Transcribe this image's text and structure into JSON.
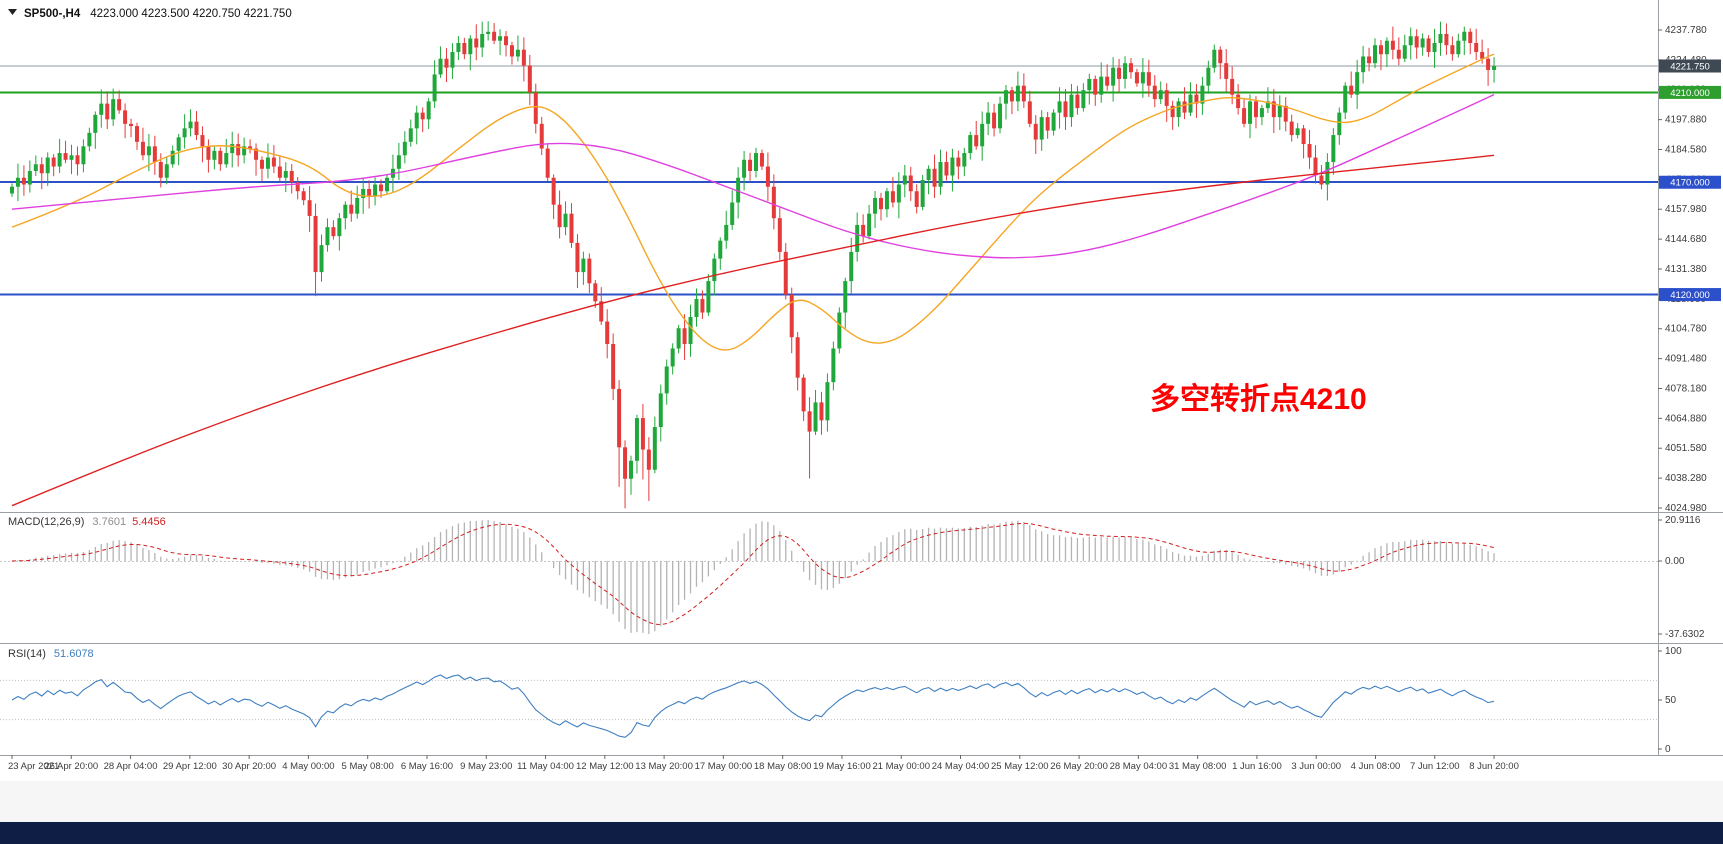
{
  "header": {
    "symbol": "SP500-,H4",
    "ohlc": "4223.000 4223.500 4220.750 4221.750"
  },
  "annotation": {
    "text": "多空转折点4210",
    "color": "#ff0000"
  },
  "colors": {
    "up_candle": "#1fa73a",
    "down_candle": "#e43a3a",
    "bottom_bar": "#0e1e44",
    "bottom_strip": "#f6f6f6",
    "separator": "#9aa0a6"
  },
  "chart_data": {
    "type": "candlestick",
    "title": "SP500-,H4",
    "symbol": "SP500-",
    "timeframe": "H4",
    "current_bar": {
      "open": 4223.0,
      "high": 4223.5,
      "low": 4220.75,
      "close": 4221.75
    },
    "ylim": [
      4024.98,
      4243.0
    ],
    "grid": false,
    "x_labels": [
      "23 Apr 2021",
      "26 Apr 20:00",
      "28 Apr 04:00",
      "29 Apr 12:00",
      "30 Apr 20:00",
      "4 May 00:00",
      "5 May 08:00",
      "6 May 16:00",
      "9 May 23:00",
      "11 May 04:00",
      "12 May 12:00",
      "13 May 20:00",
      "17 May 00:00",
      "18 May 08:00",
      "19 May 16:00",
      "21 May 00:00",
      "24 May 04:00",
      "25 May 12:00",
      "26 May 20:00",
      "28 May 04:00",
      "31 May 08:00",
      "1 Jun 16:00",
      "3 Jun 00:00",
      "4 Jun 08:00",
      "7 Jun 12:00",
      "8 Jun 20:00"
    ],
    "price_axis_ticks": [
      {
        "label": "4237.780",
        "price": 4237.78
      },
      {
        "label": "4224.480",
        "price": 4224.48
      },
      {
        "label": "4211.180",
        "price": 4211.18
      },
      {
        "label": "4197.880",
        "price": 4197.88
      },
      {
        "label": "4184.580",
        "price": 4184.58
      },
      {
        "label": "4171.280",
        "price": 4171.28
      },
      {
        "label": "4157.980",
        "price": 4157.98
      },
      {
        "label": "4144.680",
        "price": 4144.68
      },
      {
        "label": "4131.380",
        "price": 4131.38
      },
      {
        "label": "4118.080",
        "price": 4118.08
      },
      {
        "label": "4104.780",
        "price": 4104.78
      },
      {
        "label": "4091.480",
        "price": 4091.48
      },
      {
        "label": "4078.180",
        "price": 4078.18
      },
      {
        "label": "4064.880",
        "price": 4064.88
      },
      {
        "label": "4051.580",
        "price": 4051.58
      },
      {
        "label": "4038.280",
        "price": 4038.28
      },
      {
        "label": "4024.980",
        "price": 4024.98
      }
    ],
    "levels": [
      {
        "price": 4221.75,
        "label": "4221.750",
        "line_color": "#8f98a0",
        "tag_color": "#3e4954",
        "width": 1
      },
      {
        "price": 4210.0,
        "label": "4210.000",
        "line_color": "#1fa01f",
        "tag_color": "#2e9e2e",
        "width": 2
      },
      {
        "price": 4170.0,
        "label": "4170.000",
        "line_color": "#2b50c8",
        "tag_color": "#2c50cc",
        "width": 2
      },
      {
        "price": 4120.0,
        "label": "4120.000",
        "line_color": "#2b50c8",
        "tag_color": "#2c50cc",
        "width": 2
      }
    ],
    "open_first": 4165,
    "closes": [
      4168,
      4172,
      4169,
      4175,
      4178,
      4174,
      4181,
      4177,
      4183,
      4180,
      4182,
      4178,
      4186,
      4192,
      4200,
      4205,
      4198,
      4207,
      4202,
      4196,
      4195,
      4188,
      4182,
      4186,
      4179,
      4172,
      4178,
      4184,
      4190,
      4194,
      4197,
      4191,
      4186,
      4180,
      4184,
      4178,
      4183,
      4187,
      4182,
      4186,
      4185,
      4180,
      4176,
      4181,
      4177,
      4172,
      4175,
      4170,
      4166,
      4162,
      4155,
      4130,
      4142,
      4150,
      4146,
      4154,
      4160,
      4156,
      4163,
      4167,
      4164,
      4169,
      4166,
      4172,
      4176,
      4182,
      4188,
      4194,
      4201,
      4198,
      4206,
      4218,
      4225,
      4221,
      4228,
      4232,
      4227,
      4234,
      4230,
      4236,
      4237,
      4233,
      4235,
      4231,
      4226,
      4229,
      4222,
      4210,
      4196,
      4185,
      4172,
      4160,
      4150,
      4156,
      4143,
      4130,
      4136,
      4125,
      4117,
      4108,
      4098,
      4078,
      4052,
      4038,
      4046,
      4065,
      4051,
      4042,
      4061,
      4076,
      4088,
      4096,
      4105,
      4098,
      4110,
      4118,
      4112,
      4126,
      4136,
      4144,
      4151,
      4161,
      4172,
      4180,
      4175,
      4183,
      4177,
      4168,
      4154,
      4139,
      4120,
      4101,
      4083,
      4068,
      4059,
      4072,
      4064,
      4081,
      4096,
      4112,
      4126,
      4139,
      4151,
      4146,
      4156,
      4163,
      4158,
      4166,
      4161,
      4169,
      4173,
      4166,
      4159,
      4171,
      4176,
      4168,
      4179,
      4173,
      4181,
      4177,
      4183,
      4191,
      4186,
      4196,
      4201,
      4194,
      4205,
      4211,
      4206,
      4213,
      4206,
      4196,
      4189,
      4199,
      4193,
      4201,
      4206,
      4199,
      4209,
      4203,
      4211,
      4216,
      4209,
      4217,
      4213,
      4221,
      4216,
      4223,
      4219,
      4214,
      4219,
      4213,
      4207,
      4211,
      4204,
      4199,
      4206,
      4201,
      4209,
      4205,
      4213,
      4221,
      4229,
      4223,
      4216,
      4209,
      4203,
      4196,
      4206,
      4199,
      4203,
      4206,
      4199,
      4204,
      4197,
      4191,
      4194,
      4187,
      4181,
      4173,
      4169,
      4179,
      4191,
      4201,
      4213,
      4209,
      4219,
      4226,
      4223,
      4231,
      4227,
      4233,
      4229,
      4225,
      4231,
      4235,
      4230,
      4234,
      4228,
      4232,
      4236,
      4231,
      4227,
      4233,
      4237,
      4232,
      4228,
      4225,
      4220,
      4221.75
    ],
    "long_lower_wicks": {
      "51": 5,
      "102": 14,
      "103": 11,
      "106": 9,
      "107": 11,
      "134": 18
    },
    "moving_averages": [
      {
        "name": "fast-ma",
        "color": "#f5a623",
        "points": [
          [
            0,
            4150
          ],
          [
            10,
            4160
          ],
          [
            20,
            4174
          ],
          [
            28,
            4184
          ],
          [
            35,
            4187
          ],
          [
            42,
            4184
          ],
          [
            50,
            4178
          ],
          [
            56,
            4165
          ],
          [
            62,
            4163
          ],
          [
            68,
            4170
          ],
          [
            75,
            4185
          ],
          [
            82,
            4199
          ],
          [
            88,
            4205
          ],
          [
            92,
            4200
          ],
          [
            96,
            4188
          ],
          [
            100,
            4172
          ],
          [
            104,
            4152
          ],
          [
            108,
            4130
          ],
          [
            112,
            4112
          ],
          [
            116,
            4099
          ],
          [
            120,
            4094
          ],
          [
            124,
            4100
          ],
          [
            128,
            4111
          ],
          [
            132,
            4119
          ],
          [
            136,
            4114
          ],
          [
            140,
            4104
          ],
          [
            144,
            4098
          ],
          [
            148,
            4099
          ],
          [
            152,
            4106
          ],
          [
            156,
            4116
          ],
          [
            160,
            4128
          ],
          [
            164,
            4140
          ],
          [
            168,
            4152
          ],
          [
            172,
            4163
          ],
          [
            176,
            4172
          ],
          [
            180,
            4180
          ],
          [
            184,
            4188
          ],
          [
            188,
            4195
          ],
          [
            192,
            4200
          ],
          [
            196,
            4204
          ],
          [
            200,
            4206
          ],
          [
            204,
            4208
          ],
          [
            208,
            4207
          ],
          [
            212,
            4205
          ],
          [
            216,
            4202
          ],
          [
            220,
            4198
          ],
          [
            224,
            4196
          ],
          [
            228,
            4199
          ],
          [
            232,
            4205
          ],
          [
            236,
            4211
          ],
          [
            240,
            4216
          ],
          [
            244,
            4221
          ],
          [
            248,
            4226
          ],
          [
            249,
            4227
          ]
        ]
      },
      {
        "name": "mid-ma",
        "color": "#e040e0",
        "points": [
          [
            0,
            4158
          ],
          [
            20,
            4163
          ],
          [
            40,
            4168
          ],
          [
            60,
            4171
          ],
          [
            80,
            4183
          ],
          [
            90,
            4188
          ],
          [
            100,
            4186
          ],
          [
            110,
            4178
          ],
          [
            120,
            4168
          ],
          [
            130,
            4158
          ],
          [
            140,
            4148
          ],
          [
            150,
            4141
          ],
          [
            160,
            4137
          ],
          [
            170,
            4136
          ],
          [
            180,
            4139
          ],
          [
            190,
            4146
          ],
          [
            200,
            4155
          ],
          [
            210,
            4164
          ],
          [
            220,
            4174
          ],
          [
            230,
            4186
          ],
          [
            240,
            4198
          ],
          [
            249,
            4209
          ]
        ]
      },
      {
        "name": "slow-ma",
        "color": "#e02020",
        "points": [
          [
            0,
            4026
          ],
          [
            20,
            4048
          ],
          [
            40,
            4068
          ],
          [
            60,
            4086
          ],
          [
            80,
            4102
          ],
          [
            100,
            4117
          ],
          [
            120,
            4130
          ],
          [
            140,
            4141
          ],
          [
            160,
            4152
          ],
          [
            180,
            4161
          ],
          [
            200,
            4168
          ],
          [
            220,
            4174
          ],
          [
            235,
            4178
          ],
          [
            249,
            4182
          ]
        ]
      }
    ],
    "indicators": {
      "macd": {
        "label": "MACD(12,26,9)",
        "value_main": "3.7601",
        "value_signal": "5.4456",
        "axis_labels": [
          {
            "label": "20.9116",
            "value": 20.9116
          },
          {
            "label": "0.00",
            "value": 0
          },
          {
            "label": "-37.6302",
            "value": -37.6302
          }
        ],
        "histogram_color": "#b4b4b4",
        "signal_color": "#d02020"
      },
      "rsi": {
        "label": "RSI(14)",
        "value": "51.6078",
        "period": 14,
        "axis_labels": [
          {
            "label": "100",
            "value": 100
          },
          {
            "label": "50",
            "value": 50
          },
          {
            "label": "0",
            "value": 0
          }
        ],
        "levels": [
          30,
          70
        ],
        "line_color": "#3f7fc1"
      }
    }
  }
}
